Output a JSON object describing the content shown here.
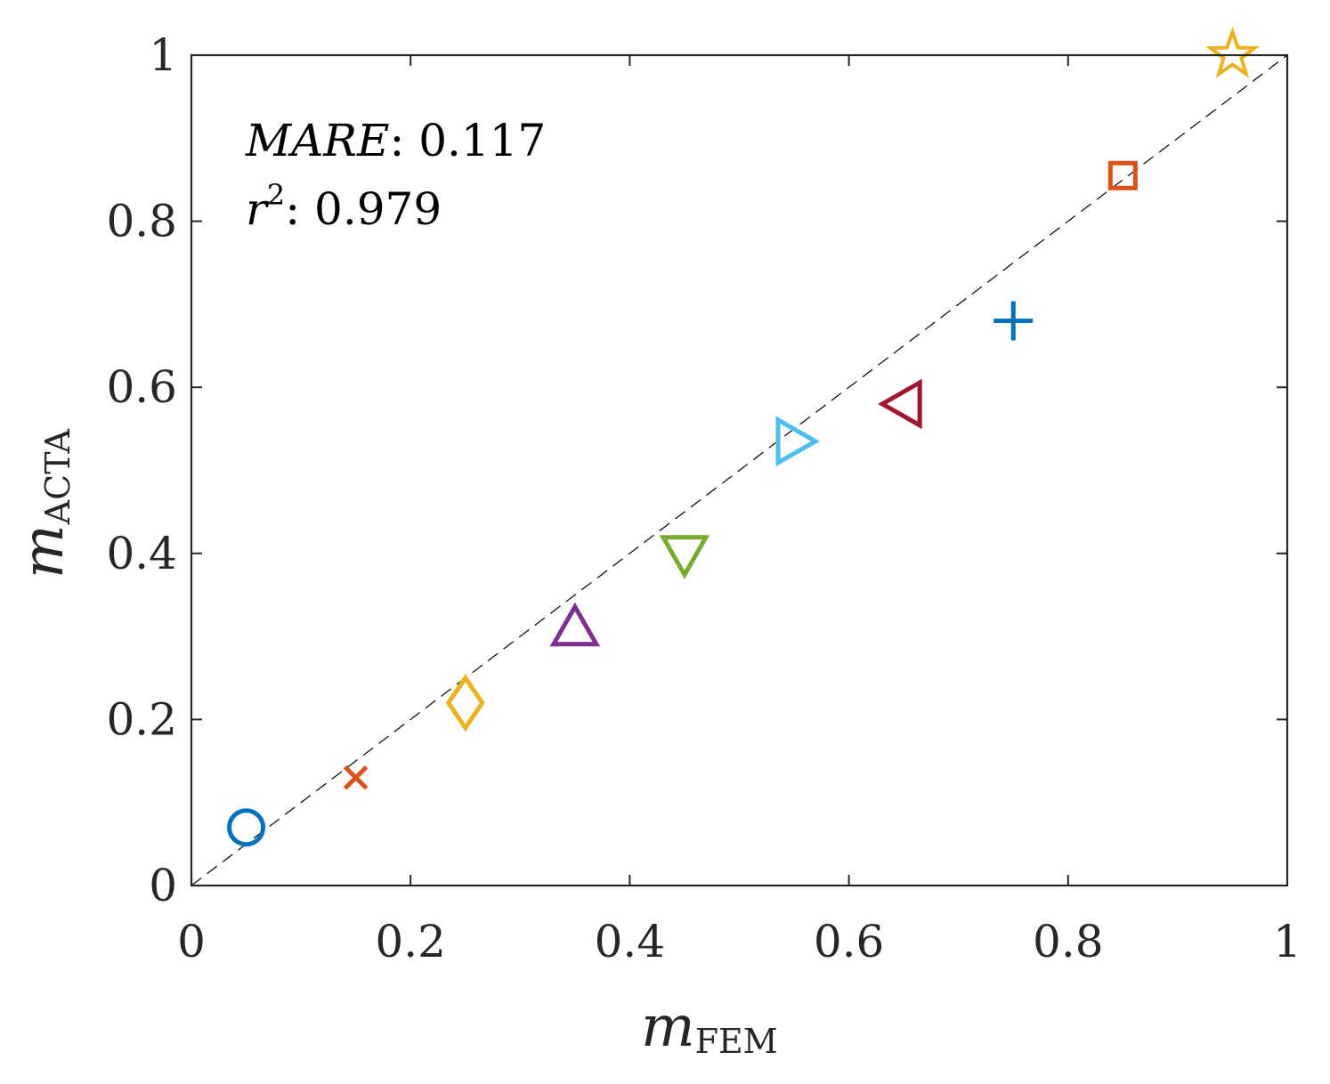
{
  "chart_data": {
    "type": "scatter",
    "title": "",
    "xlabel": {
      "main": "m",
      "sub": "FEM"
    },
    "ylabel": {
      "main": "m",
      "sub": "ACTA"
    },
    "xlim": [
      0,
      1
    ],
    "ylim": [
      0,
      1
    ],
    "grid": false,
    "xticks": [
      0,
      0.2,
      0.4,
      0.6,
      0.8,
      1
    ],
    "yticks": [
      0,
      0.2,
      0.4,
      0.6,
      0.8,
      1
    ],
    "xtick_labels": [
      "0",
      "0.2",
      "0.4",
      "0.6",
      "0.8",
      "1"
    ],
    "ytick_labels": [
      "0",
      "0.2",
      "0.4",
      "0.6",
      "0.8",
      "1"
    ],
    "reference_line": {
      "style": "dashed",
      "from": [
        0,
        0
      ],
      "to": [
        1,
        1
      ],
      "color": "#000000"
    },
    "annotations": {
      "mare_label": "MARE",
      "mare_value": ": 0.117",
      "r2_label": "r",
      "r2_sup": "2",
      "r2_value": ":  0.979"
    },
    "points": [
      {
        "x": 0.05,
        "y": 0.07,
        "marker": "circle",
        "color": "#0072BD"
      },
      {
        "x": 0.15,
        "y": 0.13,
        "marker": "x",
        "color": "#D95319"
      },
      {
        "x": 0.25,
        "y": 0.22,
        "marker": "diamond",
        "color": "#EDB120"
      },
      {
        "x": 0.35,
        "y": 0.31,
        "marker": "triangle-up",
        "color": "#7E2F8E"
      },
      {
        "x": 0.45,
        "y": 0.4,
        "marker": "triangle-down",
        "color": "#77AC30"
      },
      {
        "x": 0.55,
        "y": 0.535,
        "marker": "triangle-right",
        "color": "#4DBEEE"
      },
      {
        "x": 0.65,
        "y": 0.58,
        "marker": "triangle-left",
        "color": "#A2142F"
      },
      {
        "x": 0.75,
        "y": 0.68,
        "marker": "plus",
        "color": "#0072BD"
      },
      {
        "x": 0.85,
        "y": 0.855,
        "marker": "square",
        "color": "#D95319"
      },
      {
        "x": 0.95,
        "y": 1.0,
        "marker": "star",
        "color": "#EDB120"
      }
    ]
  }
}
